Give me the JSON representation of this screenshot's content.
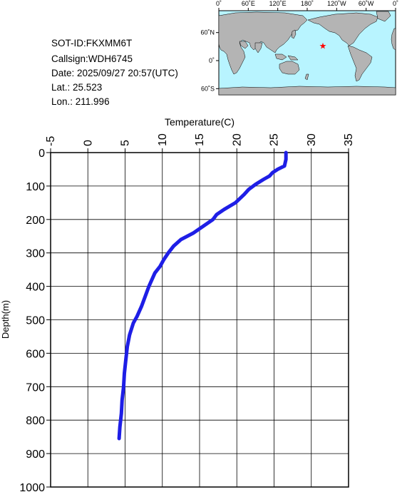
{
  "info": {
    "sot_id": "SOT-ID:FKXMM6T",
    "callsign": "Callsign:WDH6745",
    "date": "Date:  2025/09/27 20:57(UTC)",
    "lat": "Lat.:   25.523",
    "lon": "Lon.:  211.996"
  },
  "map": {
    "lon_labels": [
      "0˚",
      "60˚E",
      "120˚E",
      "180˚",
      "120˚W",
      "60˚W",
      "0˚"
    ],
    "lat_labels": [
      "60˚N",
      "0˚",
      "60˚S"
    ],
    "ocean_color": "#b8f4ff",
    "land_color": "#b4b4b4",
    "marker_color": "#ff0000",
    "marker": {
      "lon": 211.996,
      "lat": 25.523
    }
  },
  "chart_data": {
    "type": "line",
    "title": "",
    "xlabel": "Temperature(C)",
    "ylabel": "Depth(m)",
    "xlim": [
      -5,
      35
    ],
    "ylim": [
      1000,
      0
    ],
    "x_ticks": [
      -5,
      0,
      5,
      10,
      15,
      20,
      25,
      30,
      35
    ],
    "y_ticks": [
      0,
      100,
      200,
      300,
      400,
      500,
      600,
      700,
      800,
      900,
      1000
    ],
    "grid": true,
    "series_color": "#1e1ee6",
    "series": [
      {
        "x": [
          26.6,
          26.6,
          26.4,
          25.5,
          24.8,
          24.4,
          23.6,
          22.5,
          21.6,
          21.0,
          19.8,
          18.3,
          17.3,
          16.8,
          15.5,
          14.2,
          12.5,
          11.5,
          10.8,
          10.2,
          9.7,
          9.0,
          8.2,
          7.7,
          7.2,
          6.6,
          6.1,
          5.6,
          5.3,
          5.1,
          4.9,
          4.8,
          4.6,
          4.5,
          4.3,
          4.2
        ],
        "y": [
          0,
          20,
          40,
          50,
          60,
          70,
          80,
          95,
          110,
          125,
          150,
          170,
          185,
          200,
          220,
          240,
          260,
          280,
          300,
          320,
          340,
          360,
          400,
          430,
          460,
          490,
          510,
          545,
          580,
          620,
          660,
          700,
          740,
          780,
          820,
          855
        ]
      }
    ]
  }
}
